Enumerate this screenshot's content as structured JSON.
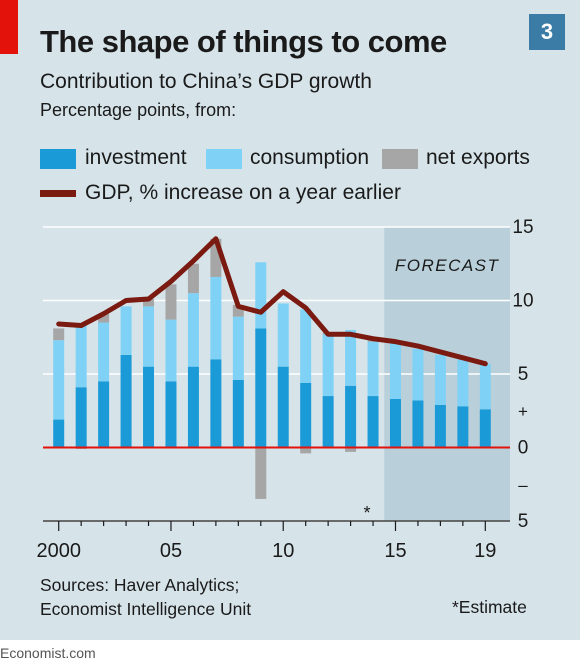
{
  "header": {
    "badge": "3",
    "title": "The shape of things to come",
    "subtitle": "Contribution to China’s GDP growth",
    "unit": "Percentage points, from:"
  },
  "legend": {
    "investment": "investment",
    "consumption": "consumption",
    "net_exports": "net exports",
    "gdp": "GDP, % increase on a year earlier"
  },
  "colors": {
    "investment": "#1a9ad6",
    "consumption": "#7fd1f5",
    "net_exports": "#a6a6a6",
    "gdp": "#7a1a10",
    "zero_line": "#e3120b",
    "forecast_band": "#b9d0da",
    "panel": "#d6e4ea"
  },
  "footer": {
    "sources_line1": "Sources: Haver Analytics;",
    "sources_line2": "Economist Intelligence Unit",
    "estimate": "*Estimate",
    "brand": "Economist.com"
  },
  "chart_data": {
    "type": "bar",
    "stacked": true,
    "title": "The shape of things to come",
    "subtitle": "Contribution to China’s GDP growth",
    "ylabel": "Percentage points, from:",
    "ylim": [
      -5,
      15
    ],
    "yticks": [
      {
        "value": 15,
        "label": "15"
      },
      {
        "value": 10,
        "label": "10"
      },
      {
        "value": 5,
        "label": "5"
      },
      {
        "value": 2.5,
        "label": "+"
      },
      {
        "value": 0,
        "label": "0"
      },
      {
        "value": -2.5,
        "label": "–"
      },
      {
        "value": -5,
        "label": "5"
      }
    ],
    "xlim": [
      1999.3,
      2020.1
    ],
    "xticks": [
      {
        "value": 2000,
        "label": "2000"
      },
      {
        "value": 2005,
        "label": "05"
      },
      {
        "value": 2010,
        "label": "10"
      },
      {
        "value": 2015,
        "label": "15"
      },
      {
        "value": 2019,
        "label": "19"
      }
    ],
    "x": [
      2000,
      2001,
      2002,
      2003,
      2004,
      2005,
      2006,
      2007,
      2008,
      2009,
      2010,
      2011,
      2012,
      2013,
      2014,
      2015,
      2016,
      2017,
      2018,
      2019
    ],
    "series": [
      {
        "name": "investment",
        "values": [
          1.9,
          4.1,
          4.5,
          6.3,
          5.5,
          4.5,
          5.5,
          6.0,
          4.6,
          8.1,
          5.5,
          4.4,
          3.5,
          4.2,
          3.5,
          3.3,
          3.2,
          2.9,
          2.8,
          2.6
        ]
      },
      {
        "name": "consumption",
        "values": [
          5.4,
          4.2,
          4.0,
          3.3,
          4.1,
          4.2,
          5.0,
          5.6,
          4.3,
          4.5,
          4.3,
          5.0,
          4.2,
          3.8,
          3.7,
          3.8,
          3.5,
          3.4,
          3.2,
          3.1
        ]
      },
      {
        "name": "net exports",
        "values": [
          0.8,
          -0.1,
          0.6,
          0.0,
          0.5,
          2.4,
          2.0,
          2.6,
          0.8,
          -3.5,
          0.0,
          -0.4,
          0.1,
          -0.3,
          0.1,
          0.0,
          0.0,
          0.0,
          0.0,
          0.0
        ]
      },
      {
        "name": "GDP, % increase on a year earlier",
        "type": "line",
        "values": [
          8.4,
          8.3,
          9.1,
          10.0,
          10.1,
          11.3,
          12.7,
          14.2,
          9.6,
          9.2,
          10.6,
          9.5,
          7.7,
          7.7,
          7.4,
          7.2,
          6.9,
          6.5,
          6.1,
          5.7
        ]
      }
    ],
    "forecast": {
      "label": "FORECAST",
      "from": 2014.5,
      "to": 2020.1
    },
    "estimate_marker": {
      "x": 2014,
      "label": "*"
    },
    "grid": true
  }
}
